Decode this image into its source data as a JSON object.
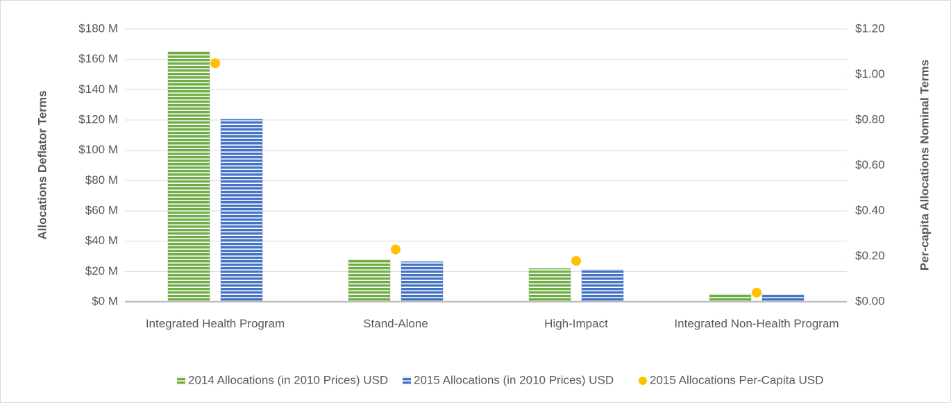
{
  "chart_data": {
    "type": "bar",
    "categories": [
      "Integrated Health Program",
      "Stand-Alone",
      "High-Impact",
      "Integrated Non-Health Program"
    ],
    "series": [
      {
        "name": "2014 Allocations (in 2010 Prices) USD",
        "color": "#70ad47",
        "values": [
          165,
          28,
          22,
          5
        ]
      },
      {
        "name": "2015 Allocations (in 2010 Prices) USD",
        "color": "#4472c4",
        "values": [
          120.5,
          26.5,
          21,
          4.5
        ]
      },
      {
        "name": "2015 Allocations Per-Capita USD",
        "color": "#ffc000",
        "axis": "y2",
        "values": [
          1.05,
          0.23,
          0.18,
          0.04
        ]
      }
    ],
    "ylabel": "Allocations Deflator Terms",
    "y2label": "Per-capita Allocations Nominal Terms",
    "ylim": [
      0,
      180
    ],
    "yticks": [
      {
        "value": 0,
        "label": "$0 M"
      },
      {
        "value": 20,
        "label": "$20 M"
      },
      {
        "value": 40,
        "label": "$40 M"
      },
      {
        "value": 60,
        "label": "$60 M"
      },
      {
        "value": 80,
        "label": "$80 M"
      },
      {
        "value": 100,
        "label": "$100 M"
      },
      {
        "value": 120,
        "label": "$120 M"
      },
      {
        "value": 140,
        "label": "$140 M"
      },
      {
        "value": 160,
        "label": "$160 M"
      },
      {
        "value": 180,
        "label": "$180 M"
      }
    ],
    "y2lim": [
      0,
      1.2
    ],
    "y2ticks": [
      {
        "value": 0,
        "label": "$0.00"
      },
      {
        "value": 0.2,
        "label": "$0.20"
      },
      {
        "value": 0.4,
        "label": "$0.40"
      },
      {
        "value": 0.6,
        "label": "$0.60"
      },
      {
        "value": 0.8,
        "label": "$0.80"
      },
      {
        "value": 1.0,
        "label": "$1.00"
      },
      {
        "value": 1.2,
        "label": "$1.20"
      }
    ],
    "grid": true,
    "legend": "bottom"
  }
}
